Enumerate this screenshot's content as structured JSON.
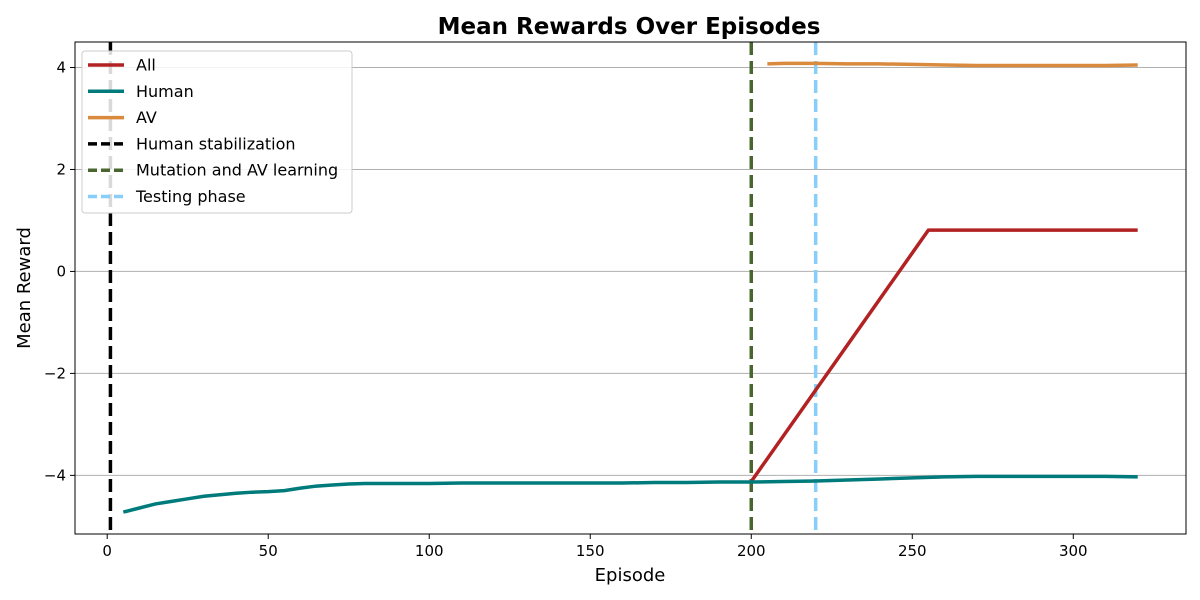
{
  "chart_data": {
    "type": "line",
    "title": "Mean Rewards Over Episodes",
    "xlabel": "Episode",
    "ylabel": "Mean Reward",
    "xlim": [
      -10,
      335
    ],
    "ylim": [
      -5.15,
      4.5
    ],
    "xticks": [
      0,
      50,
      100,
      150,
      200,
      250,
      300
    ],
    "yticks": [
      -4,
      -2,
      0,
      2,
      4
    ],
    "ytick_labels": [
      "−4",
      "−2",
      "0",
      "2",
      "4"
    ],
    "grid": "horizontal",
    "legend_position": "top-left",
    "series": [
      {
        "name": "All",
        "color": "#b22222",
        "x": [
          200,
          255,
          260,
          270,
          280,
          290,
          300,
          310,
          320
        ],
        "y": [
          -4.12,
          0.81,
          0.81,
          0.81,
          0.81,
          0.81,
          0.81,
          0.81,
          0.81
        ]
      },
      {
        "name": "Human",
        "color": "#007b7b",
        "x": [
          5,
          10,
          15,
          20,
          25,
          30,
          35,
          40,
          45,
          50,
          55,
          60,
          65,
          70,
          75,
          80,
          90,
          100,
          110,
          120,
          130,
          140,
          150,
          160,
          170,
          180,
          190,
          200,
          210,
          220,
          230,
          240,
          250,
          260,
          270,
          280,
          290,
          300,
          310,
          320
        ],
        "y": [
          -4.72,
          -4.64,
          -4.56,
          -4.51,
          -4.46,
          -4.41,
          -4.38,
          -4.35,
          -4.33,
          -4.32,
          -4.3,
          -4.25,
          -4.21,
          -4.19,
          -4.17,
          -4.16,
          -4.16,
          -4.16,
          -4.15,
          -4.15,
          -4.15,
          -4.15,
          -4.15,
          -4.15,
          -4.14,
          -4.14,
          -4.13,
          -4.13,
          -4.12,
          -4.11,
          -4.09,
          -4.07,
          -4.05,
          -4.03,
          -4.02,
          -4.02,
          -4.02,
          -4.02,
          -4.02,
          -4.03
        ]
      },
      {
        "name": "AV",
        "color": "#d98a3d",
        "x": [
          205,
          210,
          220,
          230,
          240,
          250,
          260,
          270,
          280,
          290,
          300,
          310,
          320
        ],
        "y": [
          4.07,
          4.08,
          4.08,
          4.07,
          4.07,
          4.06,
          4.05,
          4.04,
          4.04,
          4.04,
          4.04,
          4.04,
          4.05
        ]
      }
    ],
    "vlines": [
      {
        "name": "Human stabilization",
        "x": 1,
        "color": "#000000"
      },
      {
        "name": "Mutation and AV learning",
        "x": 200,
        "color": "#4a6630"
      },
      {
        "name": "Testing phase",
        "x": 220,
        "color": "#87cefa"
      }
    ]
  }
}
